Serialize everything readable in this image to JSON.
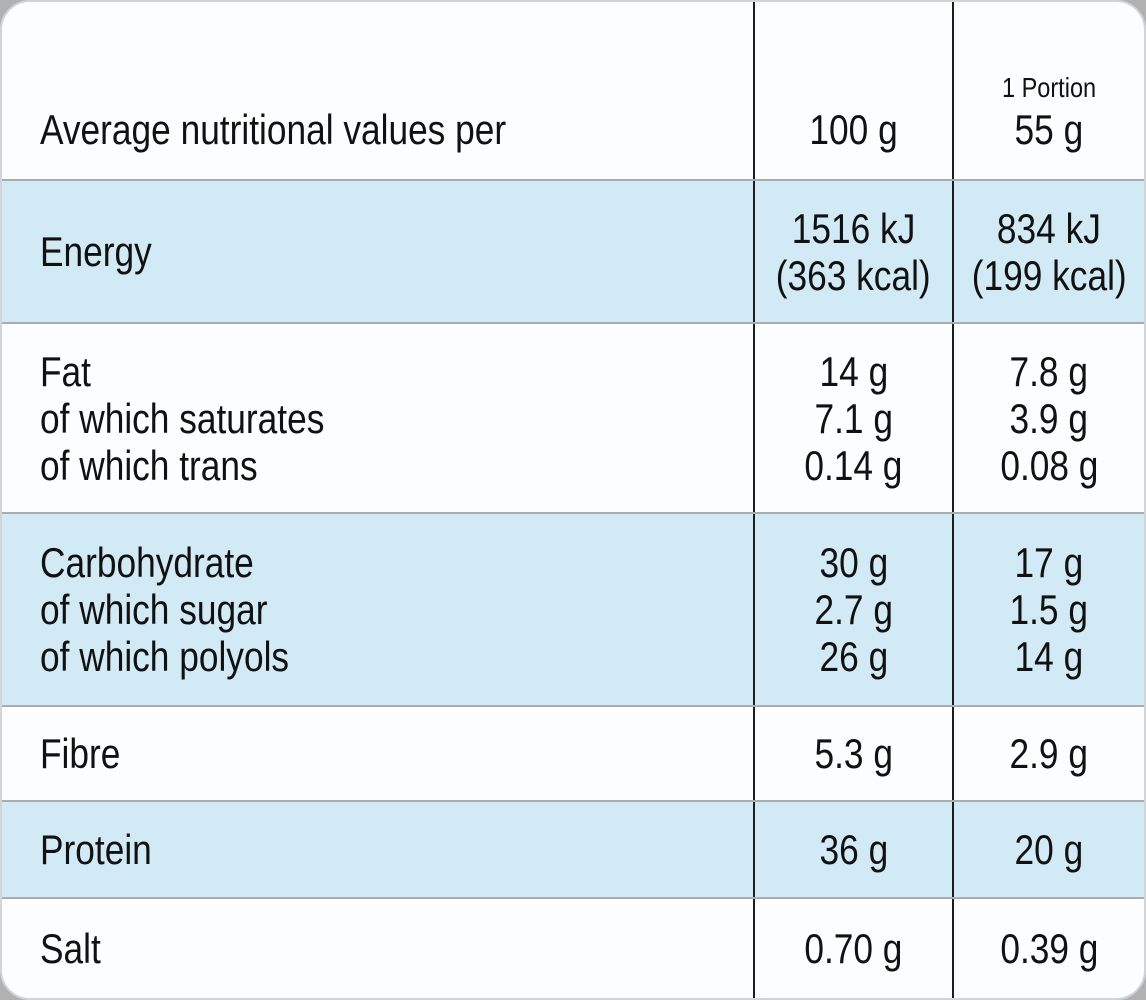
{
  "table": {
    "header": {
      "label": "Average nutritional values per",
      "col_100g": "100 g",
      "portion_label": "1 Portion",
      "portion_amount": "55 g"
    },
    "rows": [
      {
        "name": "Energy",
        "labels": [
          "Energy"
        ],
        "per100g": [
          "1516 kJ",
          "(363 kcal)"
        ],
        "portion": [
          "834 kJ",
          "(199 kcal)"
        ]
      },
      {
        "name": "Fat",
        "labels": [
          "Fat",
          "of which saturates",
          "of which trans"
        ],
        "per100g": [
          "14 g",
          "7.1 g",
          "0.14 g"
        ],
        "portion": [
          "7.8 g",
          "3.9 g",
          "0.08 g"
        ]
      },
      {
        "name": "Carbohydrate",
        "labels": [
          "Carbohydrate",
          "of which sugar",
          "of which polyols"
        ],
        "per100g": [
          "30 g",
          "2.7 g",
          "26 g"
        ],
        "portion": [
          "17 g",
          "1.5 g",
          "14 g"
        ]
      },
      {
        "name": "Fibre",
        "labels": [
          "Fibre"
        ],
        "per100g": [
          "5.3 g"
        ],
        "portion": [
          "2.9 g"
        ]
      },
      {
        "name": "Protein",
        "labels": [
          "Protein"
        ],
        "per100g": [
          "36 g"
        ],
        "portion": [
          "20 g"
        ]
      },
      {
        "name": "Salt",
        "labels": [
          "Salt"
        ],
        "per100g": [
          "0.70 g"
        ],
        "portion": [
          "0.39 g"
        ]
      }
    ],
    "colors": {
      "shaded_row": "#d2e9f6",
      "card_background": "#fbfdfe",
      "outer_background": "#b1b1b1",
      "column_rule": "#1d1d1d",
      "row_rule": "#a8adb1",
      "text": "#111111"
    }
  }
}
